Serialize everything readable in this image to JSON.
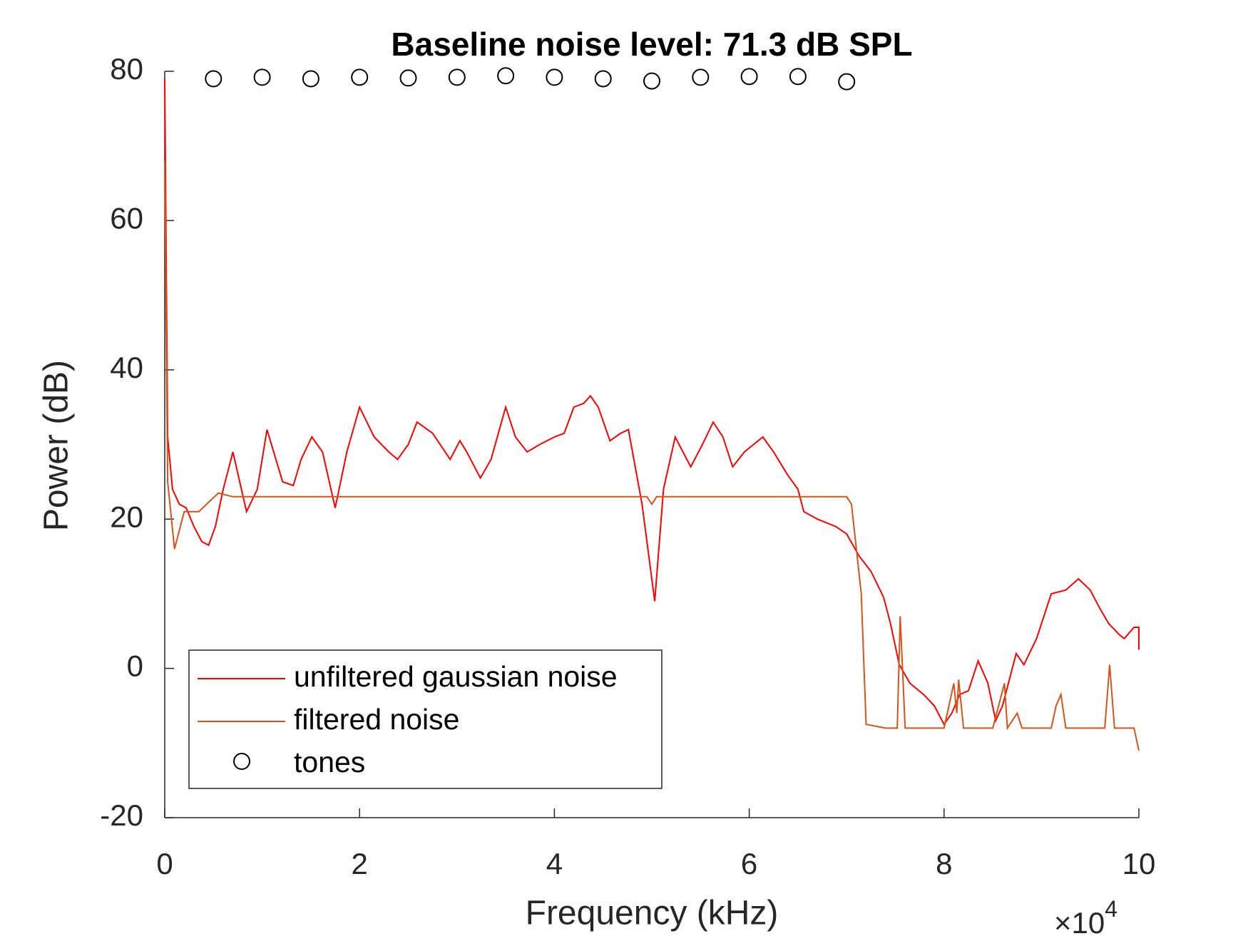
{
  "chart_data": {
    "type": "line",
    "title": "Baseline noise level: 71.3 dB SPL",
    "xlabel": "Frequency (kHz)",
    "ylabel": "Power (dB)",
    "x_multiplier": {
      "base": "×10",
      "exponent": "4"
    },
    "xlim": [
      0,
      10
    ],
    "ylim": [
      -20,
      80
    ],
    "xticks": [
      0,
      2,
      4,
      6,
      8,
      10
    ],
    "yticks": [
      -20,
      0,
      20,
      40,
      60,
      80
    ],
    "legend": "lower left",
    "series": [
      {
        "name": "unfiltered gaussian noise",
        "type": "line",
        "color": "#ff0000",
        "x": [
          0,
          0.03,
          0.08,
          0.15,
          0.22,
          0.3,
          0.38,
          0.45,
          0.52,
          0.6,
          0.7,
          0.84,
          0.95,
          1.05,
          1.21,
          1.32,
          1.4,
          1.51,
          1.62,
          1.75,
          1.87,
          2.0,
          2.15,
          2.3,
          2.39,
          2.5,
          2.59,
          2.75,
          2.93,
          3.03,
          3.1,
          3.24,
          3.35,
          3.5,
          3.6,
          3.72,
          3.85,
          4.0,
          4.1,
          4.2,
          4.3,
          4.37,
          4.45,
          4.57,
          4.68,
          4.76,
          4.9,
          5.03,
          5.12,
          5.24,
          5.32,
          5.4,
          5.52,
          5.63,
          5.73,
          5.83,
          5.95,
          6.14,
          6.25,
          6.39,
          6.5,
          6.56,
          6.7,
          6.89,
          7.0,
          7.13,
          7.25,
          7.38,
          7.45,
          7.54,
          7.65,
          7.79,
          7.9,
          8.0,
          8.08,
          8.16,
          8.25,
          8.35,
          8.45,
          8.53,
          8.6,
          8.74,
          8.82,
          8.95,
          9.1,
          9.25,
          9.38,
          9.5,
          9.6,
          9.69,
          9.8,
          9.85,
          9.95,
          10,
          10
        ],
        "values": [
          79,
          31,
          24,
          22,
          21.5,
          19,
          17,
          16.5,
          19,
          24,
          29,
          21,
          24,
          32,
          25,
          24.5,
          28,
          31,
          29,
          21.5,
          29,
          35,
          31,
          29,
          28,
          30,
          33,
          31.5,
          28,
          30.5,
          29,
          25.5,
          28,
          35,
          31,
          29,
          30,
          31,
          31.5,
          35,
          35.5,
          36.5,
          35,
          30.5,
          31.5,
          32,
          22,
          9,
          24,
          31,
          29,
          27,
          30,
          33,
          31,
          27,
          29,
          31,
          29,
          26,
          24,
          21,
          20,
          19,
          18,
          15,
          13,
          9.5,
          6,
          0.5,
          -2,
          -3.5,
          -5,
          -7.5,
          -6,
          -3.5,
          -3,
          1,
          -2,
          -7,
          -5,
          2,
          0.5,
          4,
          10,
          10.5,
          12,
          10.5,
          8,
          6,
          4.5,
          4,
          5.5,
          5.5,
          2.5
        ]
      },
      {
        "name": "filtered noise",
        "type": "line",
        "color": "#d95319",
        "x": [
          0,
          0.03,
          0.1,
          0.2,
          0.35,
          0.55,
          0.7,
          1.0,
          2.0,
          3.0,
          4.0,
          4.95,
          5.0,
          5.05,
          6.0,
          7.0,
          7.05,
          7.15,
          7.2,
          7.4,
          7.52,
          7.55,
          7.6,
          8.0,
          8.1,
          8.13,
          8.15,
          8.2,
          8.5,
          8.62,
          8.65,
          8.75,
          8.8,
          9.1,
          9.15,
          9.2,
          9.25,
          9.65,
          9.7,
          9.75,
          9.95,
          10
        ],
        "values": [
          68,
          25,
          16,
          21,
          21,
          23.5,
          23,
          23,
          23,
          23,
          23,
          23,
          22,
          23,
          23,
          23,
          22,
          10,
          -7.5,
          -8,
          -8,
          7,
          -8,
          -8,
          -2,
          -6,
          -1.5,
          -8,
          -8,
          -2,
          -8,
          -6,
          -8,
          -8,
          -5,
          -3.5,
          -8,
          -8,
          0.5,
          -8,
          -8,
          -11
        ]
      },
      {
        "name": "tones",
        "type": "scatter",
        "color": "#000000",
        "x": [
          0.5,
          1,
          1.5,
          2,
          2.5,
          3,
          3.5,
          4,
          4.5,
          5,
          5.5,
          6,
          6.5,
          7
        ],
        "values": [
          79,
          79.2,
          79,
          79.2,
          79.1,
          79.2,
          79.4,
          79.2,
          79,
          78.7,
          79.2,
          79.3,
          79.3,
          78.6
        ]
      }
    ]
  }
}
